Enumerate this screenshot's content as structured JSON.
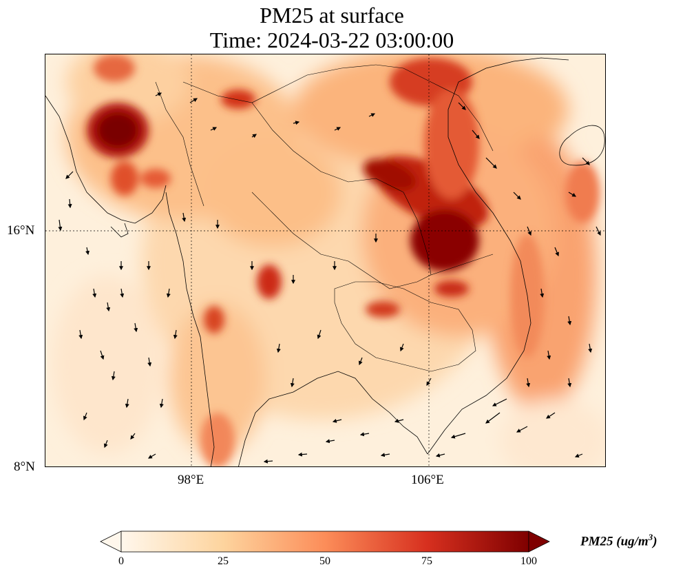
{
  "title": {
    "line1": "PM25 at surface",
    "line2": "Time: 2024-03-22 03:00:00"
  },
  "map": {
    "lon_ticks": [
      "98°E",
      "106°E"
    ],
    "lat_ticks": [
      "16°N",
      "8°N"
    ],
    "gridlines": "dotted",
    "features": [
      "coastlines",
      "country-borders",
      "wind-vectors",
      "pm25-field"
    ]
  },
  "colorbar": {
    "label": "PM25 (ug/m",
    "label_sup": "3",
    "label_close": ")",
    "ticks": [
      "0",
      "25",
      "50",
      "75",
      "100"
    ],
    "min": 0,
    "max": 100,
    "extend": "both",
    "colormap": "OrRd",
    "colors": [
      "#fff7ec",
      "#fdd49e",
      "#fc8d59",
      "#d7301f",
      "#7f0000"
    ]
  }
}
